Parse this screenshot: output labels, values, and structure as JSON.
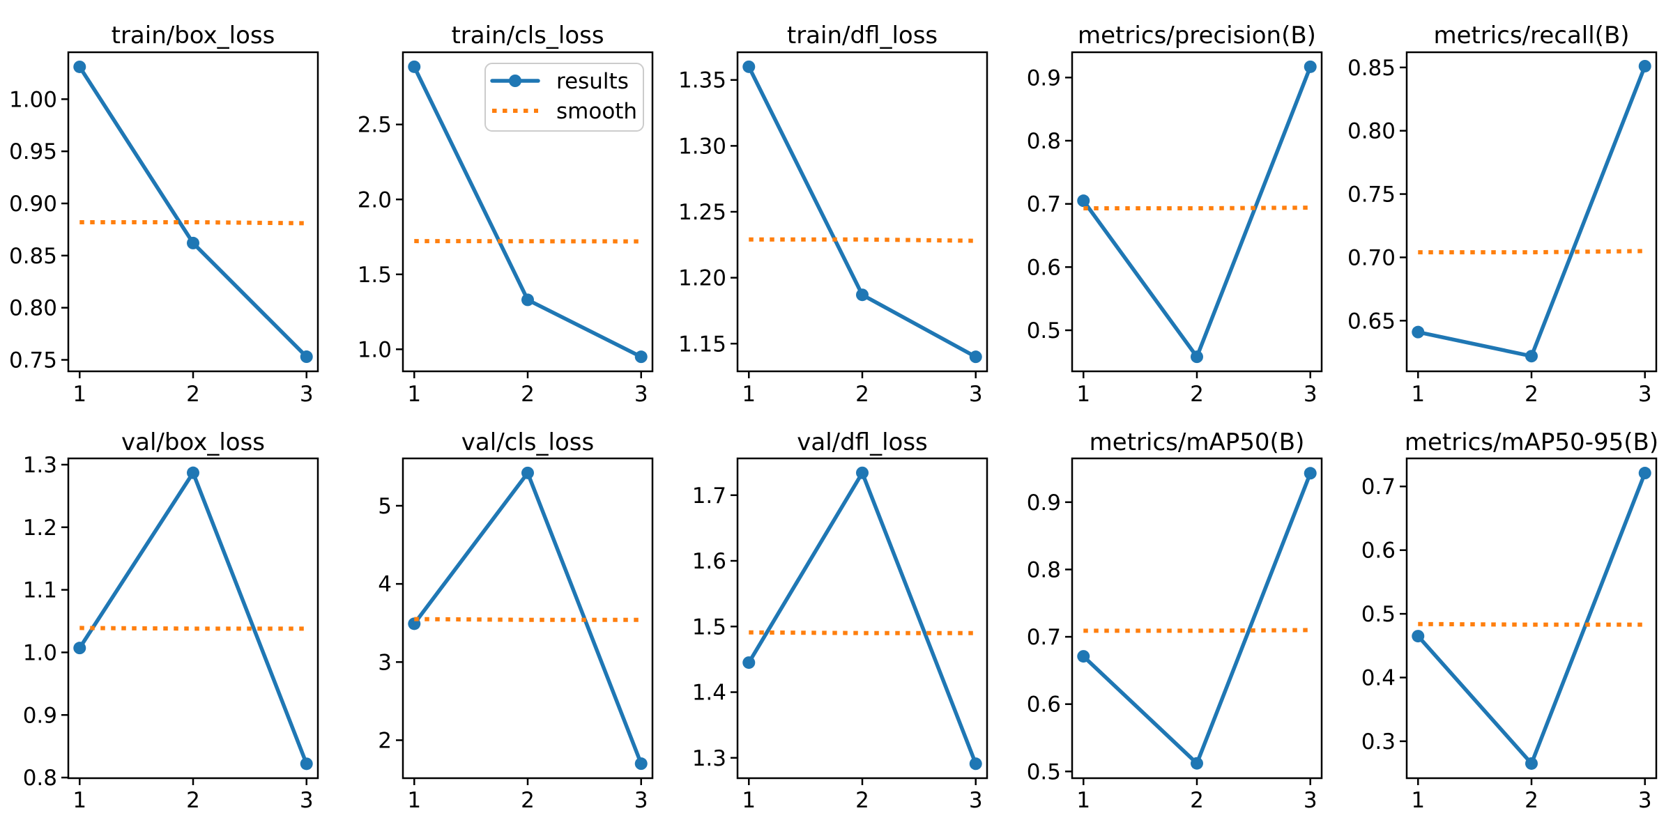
{
  "figure": {
    "background": "#ffffff",
    "colors": {
      "results": "#1f77b4",
      "smooth": "#ff7f0e",
      "axis": "#000000",
      "legend_border": "#cccccc"
    },
    "legend": {
      "entries": [
        "results",
        "smooth"
      ],
      "position": "upper-right-of-train-cls-loss-subplot"
    }
  },
  "chart_data": [
    {
      "type": "line",
      "title": "train/box_loss",
      "x": [
        1,
        2,
        3
      ],
      "series": [
        {
          "name": "results",
          "style": "solid-marker",
          "color": "#1f77b4",
          "values": [
            1.031,
            0.862,
            0.753
          ]
        },
        {
          "name": "smooth",
          "style": "dotted",
          "color": "#ff7f0e",
          "values": [
            0.882,
            0.882,
            0.881
          ]
        }
      ],
      "xlim": [
        0.9,
        3.1
      ],
      "ylim": [
        0.739,
        1.045
      ],
      "xticks": {
        "values": [
          1,
          2,
          3
        ],
        "labels": [
          "1",
          "2",
          "3"
        ]
      },
      "yticks": {
        "values": [
          0.75,
          0.8,
          0.85,
          0.9,
          0.95,
          1.0
        ],
        "labels": [
          "0.75",
          "0.80",
          "0.85",
          "0.90",
          "0.95",
          "1.00"
        ]
      },
      "legend": false
    },
    {
      "type": "line",
      "title": "train/cls_loss",
      "x": [
        1,
        2,
        3
      ],
      "series": [
        {
          "name": "results",
          "style": "solid-marker",
          "color": "#1f77b4",
          "values": [
            2.885,
            1.33,
            0.95
          ]
        },
        {
          "name": "smooth",
          "style": "dotted",
          "color": "#ff7f0e",
          "values": [
            1.722,
            1.721,
            1.72
          ]
        }
      ],
      "xlim": [
        0.9,
        3.1
      ],
      "ylim": [
        0.853,
        2.982
      ],
      "xticks": {
        "values": [
          1,
          2,
          3
        ],
        "labels": [
          "1",
          "2",
          "3"
        ]
      },
      "yticks": {
        "values": [
          1.0,
          1.5,
          2.0,
          2.5
        ],
        "labels": [
          "1.0",
          "1.5",
          "2.0",
          "2.5"
        ]
      },
      "legend": true
    },
    {
      "type": "line",
      "title": "train/dfl_loss",
      "x": [
        1,
        2,
        3
      ],
      "series": [
        {
          "name": "results",
          "style": "solid-marker",
          "color": "#1f77b4",
          "values": [
            1.36,
            1.187,
            1.14
          ]
        },
        {
          "name": "smooth",
          "style": "dotted",
          "color": "#ff7f0e",
          "values": [
            1.229,
            1.229,
            1.228
          ]
        }
      ],
      "xlim": [
        0.9,
        3.1
      ],
      "ylim": [
        1.129,
        1.371
      ],
      "xticks": {
        "values": [
          1,
          2,
          3
        ],
        "labels": [
          "1",
          "2",
          "3"
        ]
      },
      "yticks": {
        "values": [
          1.15,
          1.2,
          1.25,
          1.3,
          1.35
        ],
        "labels": [
          "1.15",
          "1.20",
          "1.25",
          "1.30",
          "1.35"
        ]
      },
      "legend": false
    },
    {
      "type": "line",
      "title": "metrics/precision(B)",
      "x": [
        1,
        2,
        3
      ],
      "series": [
        {
          "name": "results",
          "style": "solid-marker",
          "color": "#1f77b4",
          "values": [
            0.705,
            0.458,
            0.917
          ]
        },
        {
          "name": "smooth",
          "style": "dotted",
          "color": "#ff7f0e",
          "values": [
            0.693,
            0.693,
            0.694
          ]
        }
      ],
      "xlim": [
        0.9,
        3.1
      ],
      "ylim": [
        0.435,
        0.94
      ],
      "xticks": {
        "values": [
          1,
          2,
          3
        ],
        "labels": [
          "1",
          "2",
          "3"
        ]
      },
      "yticks": {
        "values": [
          0.5,
          0.6,
          0.7,
          0.8,
          0.9
        ],
        "labels": [
          "0.5",
          "0.6",
          "0.7",
          "0.8",
          "0.9"
        ]
      },
      "legend": false
    },
    {
      "type": "line",
      "title": "metrics/recall(B)",
      "x": [
        1,
        2,
        3
      ],
      "series": [
        {
          "name": "results",
          "style": "solid-marker",
          "color": "#1f77b4",
          "values": [
            0.641,
            0.622,
            0.851
          ]
        },
        {
          "name": "smooth",
          "style": "dotted",
          "color": "#ff7f0e",
          "values": [
            0.704,
            0.704,
            0.705
          ]
        }
      ],
      "xlim": [
        0.9,
        3.1
      ],
      "ylim": [
        0.61,
        0.862
      ],
      "xticks": {
        "values": [
          1,
          2,
          3
        ],
        "labels": [
          "1",
          "2",
          "3"
        ]
      },
      "yticks": {
        "values": [
          0.65,
          0.7,
          0.75,
          0.8,
          0.85
        ],
        "labels": [
          "0.65",
          "0.70",
          "0.75",
          "0.80",
          "0.85"
        ]
      },
      "legend": false
    },
    {
      "type": "line",
      "title": "val/box_loss",
      "x": [
        1,
        2,
        3
      ],
      "series": [
        {
          "name": "results",
          "style": "solid-marker",
          "color": "#1f77b4",
          "values": [
            1.007,
            1.287,
            0.822
          ]
        },
        {
          "name": "smooth",
          "style": "dotted",
          "color": "#ff7f0e",
          "values": [
            1.039,
            1.038,
            1.038
          ]
        }
      ],
      "xlim": [
        0.9,
        3.1
      ],
      "ylim": [
        0.799,
        1.31
      ],
      "xticks": {
        "values": [
          1,
          2,
          3
        ],
        "labels": [
          "1",
          "2",
          "3"
        ]
      },
      "yticks": {
        "values": [
          0.8,
          0.9,
          1.0,
          1.1,
          1.2,
          1.3
        ],
        "labels": [
          "0.8",
          "0.9",
          "1.0",
          "1.1",
          "1.2",
          "1.3"
        ]
      },
      "legend": false
    },
    {
      "type": "line",
      "title": "val/cls_loss",
      "x": [
        1,
        2,
        3
      ],
      "series": [
        {
          "name": "results",
          "style": "solid-marker",
          "color": "#1f77b4",
          "values": [
            3.49,
            5.42,
            1.7
          ]
        },
        {
          "name": "smooth",
          "style": "dotted",
          "color": "#ff7f0e",
          "values": [
            3.55,
            3.54,
            3.54
          ]
        }
      ],
      "xlim": [
        0.9,
        3.1
      ],
      "ylim": [
        1.514,
        5.606
      ],
      "xticks": {
        "values": [
          1,
          2,
          3
        ],
        "labels": [
          "1",
          "2",
          "3"
        ]
      },
      "yticks": {
        "values": [
          2,
          3,
          4,
          5
        ],
        "labels": [
          "2",
          "3",
          "4",
          "5"
        ]
      },
      "legend": false
    },
    {
      "type": "line",
      "title": "val/dfl_loss",
      "x": [
        1,
        2,
        3
      ],
      "series": [
        {
          "name": "results",
          "style": "solid-marker",
          "color": "#1f77b4",
          "values": [
            1.445,
            1.734,
            1.291
          ]
        },
        {
          "name": "smooth",
          "style": "dotted",
          "color": "#ff7f0e",
          "values": [
            1.491,
            1.49,
            1.49
          ]
        }
      ],
      "xlim": [
        0.9,
        3.1
      ],
      "ylim": [
        1.269,
        1.756
      ],
      "xticks": {
        "values": [
          1,
          2,
          3
        ],
        "labels": [
          "1",
          "2",
          "3"
        ]
      },
      "yticks": {
        "values": [
          1.3,
          1.4,
          1.5,
          1.6,
          1.7
        ],
        "labels": [
          "1.3",
          "1.4",
          "1.5",
          "1.6",
          "1.7"
        ]
      },
      "legend": false
    },
    {
      "type": "line",
      "title": "metrics/mAP50(B)",
      "x": [
        1,
        2,
        3
      ],
      "series": [
        {
          "name": "results",
          "style": "solid-marker",
          "color": "#1f77b4",
          "values": [
            0.671,
            0.512,
            0.943
          ]
        },
        {
          "name": "smooth",
          "style": "dotted",
          "color": "#ff7f0e",
          "values": [
            0.709,
            0.709,
            0.71
          ]
        }
      ],
      "xlim": [
        0.9,
        3.1
      ],
      "ylim": [
        0.49,
        0.965
      ],
      "xticks": {
        "values": [
          1,
          2,
          3
        ],
        "labels": [
          "1",
          "2",
          "3"
        ]
      },
      "yticks": {
        "values": [
          0.5,
          0.6,
          0.7,
          0.8,
          0.9
        ],
        "labels": [
          "0.5",
          "0.6",
          "0.7",
          "0.8",
          "0.9"
        ]
      },
      "legend": false
    },
    {
      "type": "line",
      "title": "metrics/mAP50-95(B)",
      "x": [
        1,
        2,
        3
      ],
      "series": [
        {
          "name": "results",
          "style": "solid-marker",
          "color": "#1f77b4",
          "values": [
            0.465,
            0.265,
            0.721
          ]
        },
        {
          "name": "smooth",
          "style": "dotted",
          "color": "#ff7f0e",
          "values": [
            0.484,
            0.483,
            0.483
          ]
        }
      ],
      "xlim": [
        0.9,
        3.1
      ],
      "ylim": [
        0.242,
        0.744
      ],
      "xticks": {
        "values": [
          1,
          2,
          3
        ],
        "labels": [
          "1",
          "2",
          "3"
        ]
      },
      "yticks": {
        "values": [
          0.3,
          0.4,
          0.5,
          0.6,
          0.7
        ],
        "labels": [
          "0.3",
          "0.4",
          "0.5",
          "0.6",
          "0.7"
        ]
      },
      "legend": false
    }
  ]
}
